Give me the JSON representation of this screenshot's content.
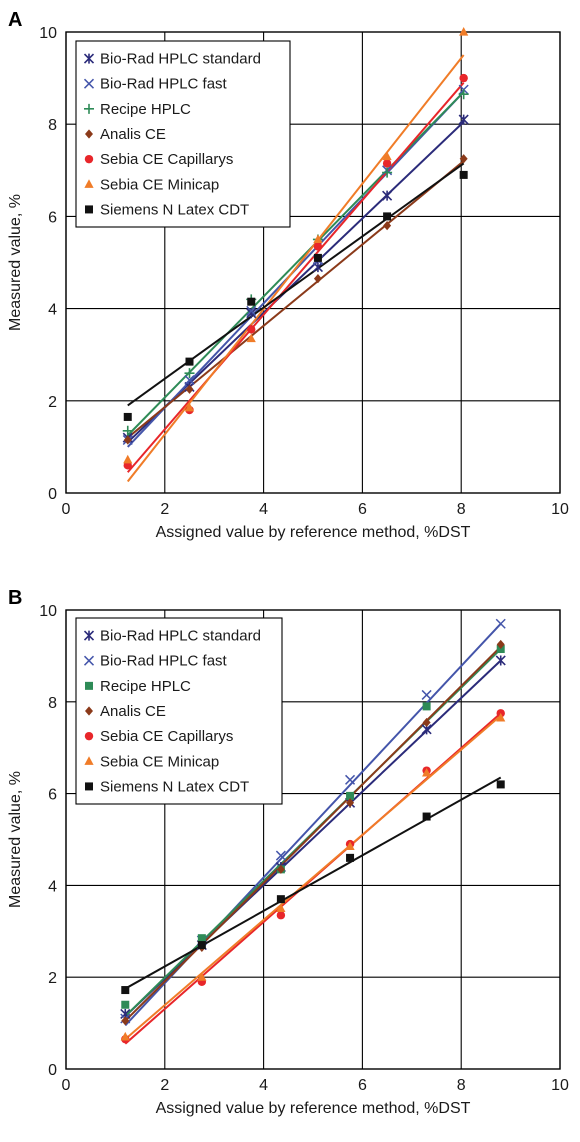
{
  "chart_data": [
    {
      "type": "scatter",
      "panel_label": "A",
      "xlabel": "Assigned value by reference method, %DST",
      "ylabel": "Measured value, %",
      "xlim": [
        0,
        10
      ],
      "ylim": [
        0,
        10
      ],
      "xticks": [
        "0",
        "2",
        "4",
        "6",
        "8",
        "10"
      ],
      "yticks": [
        "0",
        "2",
        "4",
        "6",
        "8",
        "10"
      ],
      "grid": true,
      "legend_position": "top-left",
      "series": [
        {
          "name": "Bio-Rad HPLC standard",
          "color": "#2b2b7a",
          "marker": "asterisk",
          "x": [
            1.25,
            2.5,
            3.75,
            5.1,
            6.5,
            8.05
          ],
          "y": [
            1.2,
            2.3,
            3.9,
            4.9,
            6.45,
            8.1
          ],
          "fit": [
            1.1,
            8.05
          ]
        },
        {
          "name": "Bio-Rad HPLC fast",
          "color": "#4455aa",
          "marker": "x",
          "x": [
            1.25,
            2.5,
            3.75,
            5.1,
            6.5,
            8.05
          ],
          "y": [
            1.15,
            2.45,
            3.95,
            5.05,
            7.0,
            8.75
          ],
          "fit": [
            1.0,
            8.7
          ]
        },
        {
          "name": "Recipe HPLC",
          "color": "#2e8b57",
          "marker": "plus",
          "x": [
            1.25,
            2.5,
            3.75,
            5.1,
            6.5,
            8.05
          ],
          "y": [
            1.35,
            2.6,
            4.2,
            5.5,
            6.95,
            8.65
          ],
          "fit": [
            1.25,
            8.7
          ]
        },
        {
          "name": "Analis CE",
          "color": "#8b3a1a",
          "marker": "diamond",
          "x": [
            1.25,
            2.5,
            3.75,
            5.1,
            6.5,
            8.05
          ],
          "y": [
            1.15,
            2.25,
            3.55,
            4.65,
            5.8,
            7.25
          ],
          "fit": [
            1.2,
            7.2
          ]
        },
        {
          "name": "Sebia CE Capillarys",
          "color": "#e8262a",
          "marker": "circle",
          "x": [
            1.25,
            2.5,
            3.75,
            5.1,
            6.5,
            8.05
          ],
          "y": [
            0.6,
            1.8,
            3.55,
            5.35,
            7.15,
            9.0
          ],
          "fit": [
            0.45,
            8.9
          ]
        },
        {
          "name": "Sebia CE Minicap",
          "color": "#f07c28",
          "marker": "triangle",
          "x": [
            1.25,
            2.5,
            3.75,
            5.1,
            6.5,
            8.05
          ],
          "y": [
            0.72,
            1.85,
            3.35,
            5.5,
            7.3,
            10.0
          ],
          "fit": [
            0.25,
            9.5
          ]
        },
        {
          "name": "Siemens N Latex CDT",
          "color": "#111111",
          "marker": "square",
          "x": [
            1.25,
            2.5,
            3.75,
            5.1,
            6.5,
            8.05
          ],
          "y": [
            1.65,
            2.85,
            4.15,
            5.1,
            6.0,
            6.9
          ],
          "fit": [
            1.9,
            7.15
          ]
        }
      ]
    },
    {
      "type": "scatter",
      "panel_label": "B",
      "xlabel": "Assigned value by reference method, %DST",
      "ylabel": "Measured value, %",
      "xlim": [
        0,
        10
      ],
      "ylim": [
        0,
        10
      ],
      "xticks": [
        "0",
        "2",
        "4",
        "6",
        "8",
        "10"
      ],
      "yticks": [
        "0",
        "2",
        "4",
        "6",
        "8",
        "10"
      ],
      "grid": true,
      "legend_position": "top-left",
      "series": [
        {
          "name": "Bio-Rad HPLC standard",
          "color": "#2b2b7a",
          "marker": "asterisk",
          "x": [
            1.2,
            2.75,
            4.35,
            5.75,
            7.3,
            8.8
          ],
          "y": [
            1.2,
            2.7,
            4.4,
            5.8,
            7.4,
            8.9
          ],
          "fit": [
            1.15,
            8.9
          ]
        },
        {
          "name": "Bio-Rad HPLC fast",
          "color": "#4455aa",
          "marker": "x",
          "x": [
            1.2,
            2.75,
            4.35,
            5.75,
            7.3,
            8.8
          ],
          "y": [
            1.1,
            2.8,
            4.65,
            6.3,
            8.15,
            9.7
          ],
          "fit": [
            0.95,
            9.7
          ]
        },
        {
          "name": "Recipe HPLC",
          "color": "#2e8b57",
          "marker": "square",
          "x": [
            1.2,
            2.75,
            4.35,
            5.75,
            7.3,
            8.8
          ],
          "y": [
            1.4,
            2.85,
            4.35,
            5.95,
            7.9,
            9.15
          ],
          "fit": [
            1.15,
            9.15
          ]
        },
        {
          "name": "Analis CE",
          "color": "#8b3a1a",
          "marker": "diamond",
          "x": [
            1.2,
            2.75,
            4.35,
            5.75,
            7.3,
            8.8
          ],
          "y": [
            1.05,
            2.65,
            4.35,
            5.8,
            7.55,
            9.25
          ],
          "fit": [
            1.05,
            9.2
          ]
        },
        {
          "name": "Sebia CE Capillarys",
          "color": "#e8262a",
          "marker": "circle",
          "x": [
            1.2,
            2.75,
            4.35,
            5.75,
            7.3,
            8.8
          ],
          "y": [
            0.65,
            1.9,
            3.35,
            4.9,
            6.5,
            7.75
          ],
          "fit": [
            0.55,
            7.75
          ]
        },
        {
          "name": "Sebia CE Minicap",
          "color": "#f07c28",
          "marker": "triangle",
          "x": [
            1.2,
            2.75,
            4.35,
            5.75,
            7.3,
            8.8
          ],
          "y": [
            0.7,
            2.0,
            3.5,
            4.85,
            6.45,
            7.65
          ],
          "fit": [
            0.65,
            7.7
          ]
        },
        {
          "name": "Siemens N Latex CDT",
          "color": "#111111",
          "marker": "square",
          "x": [
            1.2,
            2.75,
            4.35,
            5.75,
            7.3,
            8.8
          ],
          "y": [
            1.72,
            2.7,
            3.7,
            4.6,
            5.5,
            6.2
          ],
          "fit": [
            1.75,
            6.35
          ]
        }
      ]
    }
  ]
}
